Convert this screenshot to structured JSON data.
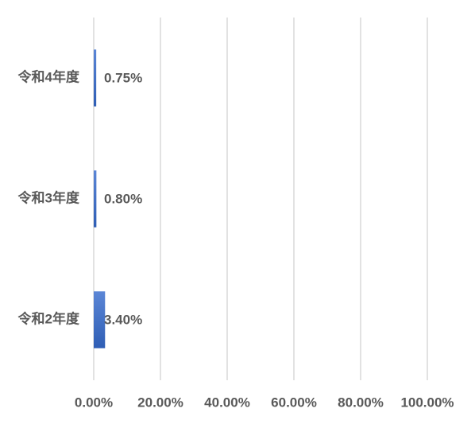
{
  "chart_data": {
    "type": "hbar",
    "categories": [
      "令和4年度",
      "令和3年度",
      "令和2年度"
    ],
    "values": [
      0.75,
      0.8,
      3.4
    ],
    "value_labels": [
      "0.75%",
      "0.80%",
      "3.40%"
    ],
    "color": "#4472c4",
    "xlim": [
      0,
      100
    ],
    "xticks": [
      {
        "value": 0,
        "label": "0.00%"
      },
      {
        "value": 20,
        "label": "20.00%"
      },
      {
        "value": 40,
        "label": "40.00%"
      },
      {
        "value": 60,
        "label": "60.00%"
      },
      {
        "value": 80,
        "label": "80.00%"
      },
      {
        "value": 100,
        "label": "100.00%"
      }
    ],
    "grid": true
  }
}
